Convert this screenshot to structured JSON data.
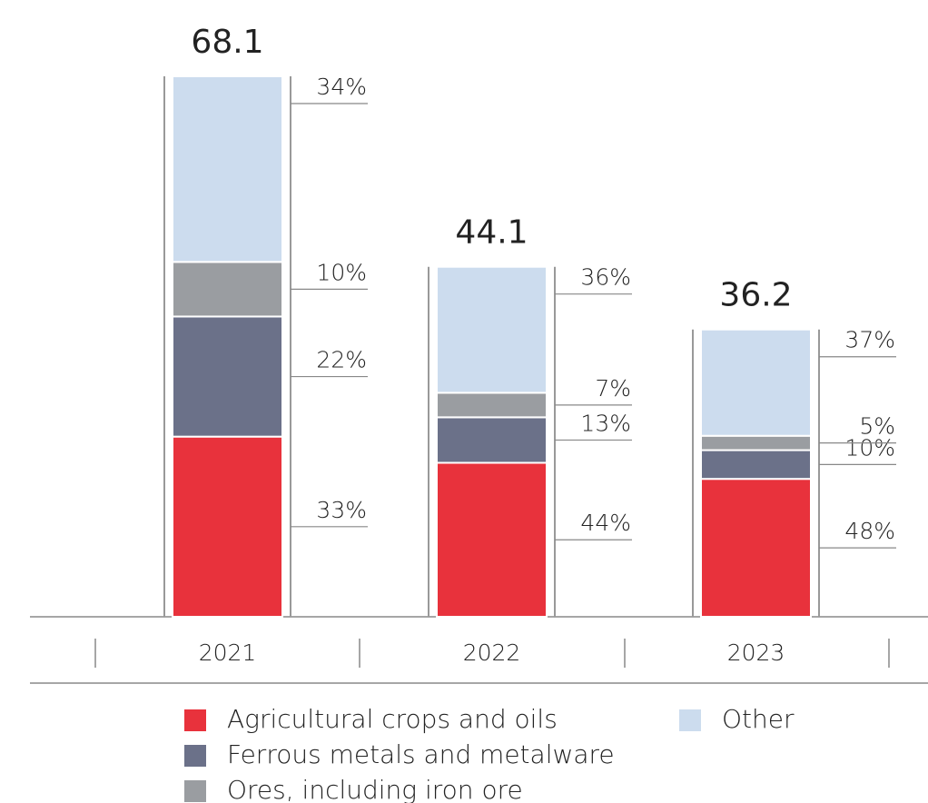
{
  "chart_data": {
    "type": "bar",
    "stacked": true,
    "categories": [
      "2021",
      "2022",
      "2023"
    ],
    "values": [
      68.1,
      44.1,
      36.2
    ],
    "series": [
      {
        "name": "Agricultural crops and oils",
        "color": "#e8323c",
        "values": [
          33,
          44,
          48
        ],
        "value_labels": [
          "33%",
          "44%",
          "48%"
        ]
      },
      {
        "name": "Ferrous metals and metalware",
        "color": "#6b7189",
        "values": [
          22,
          13,
          10
        ],
        "value_labels": [
          "22%",
          "13%",
          "10%"
        ]
      },
      {
        "name": "Ores, including iron ore",
        "color": "#9a9da1",
        "values": [
          10,
          7,
          5
        ],
        "value_labels": [
          "10%",
          "7%",
          "5%"
        ]
      },
      {
        "name": "Other",
        "color": "#ccdcee",
        "values": [
          34,
          36,
          37
        ],
        "value_labels": [
          "34%",
          "36%",
          "37%"
        ]
      }
    ]
  }
}
